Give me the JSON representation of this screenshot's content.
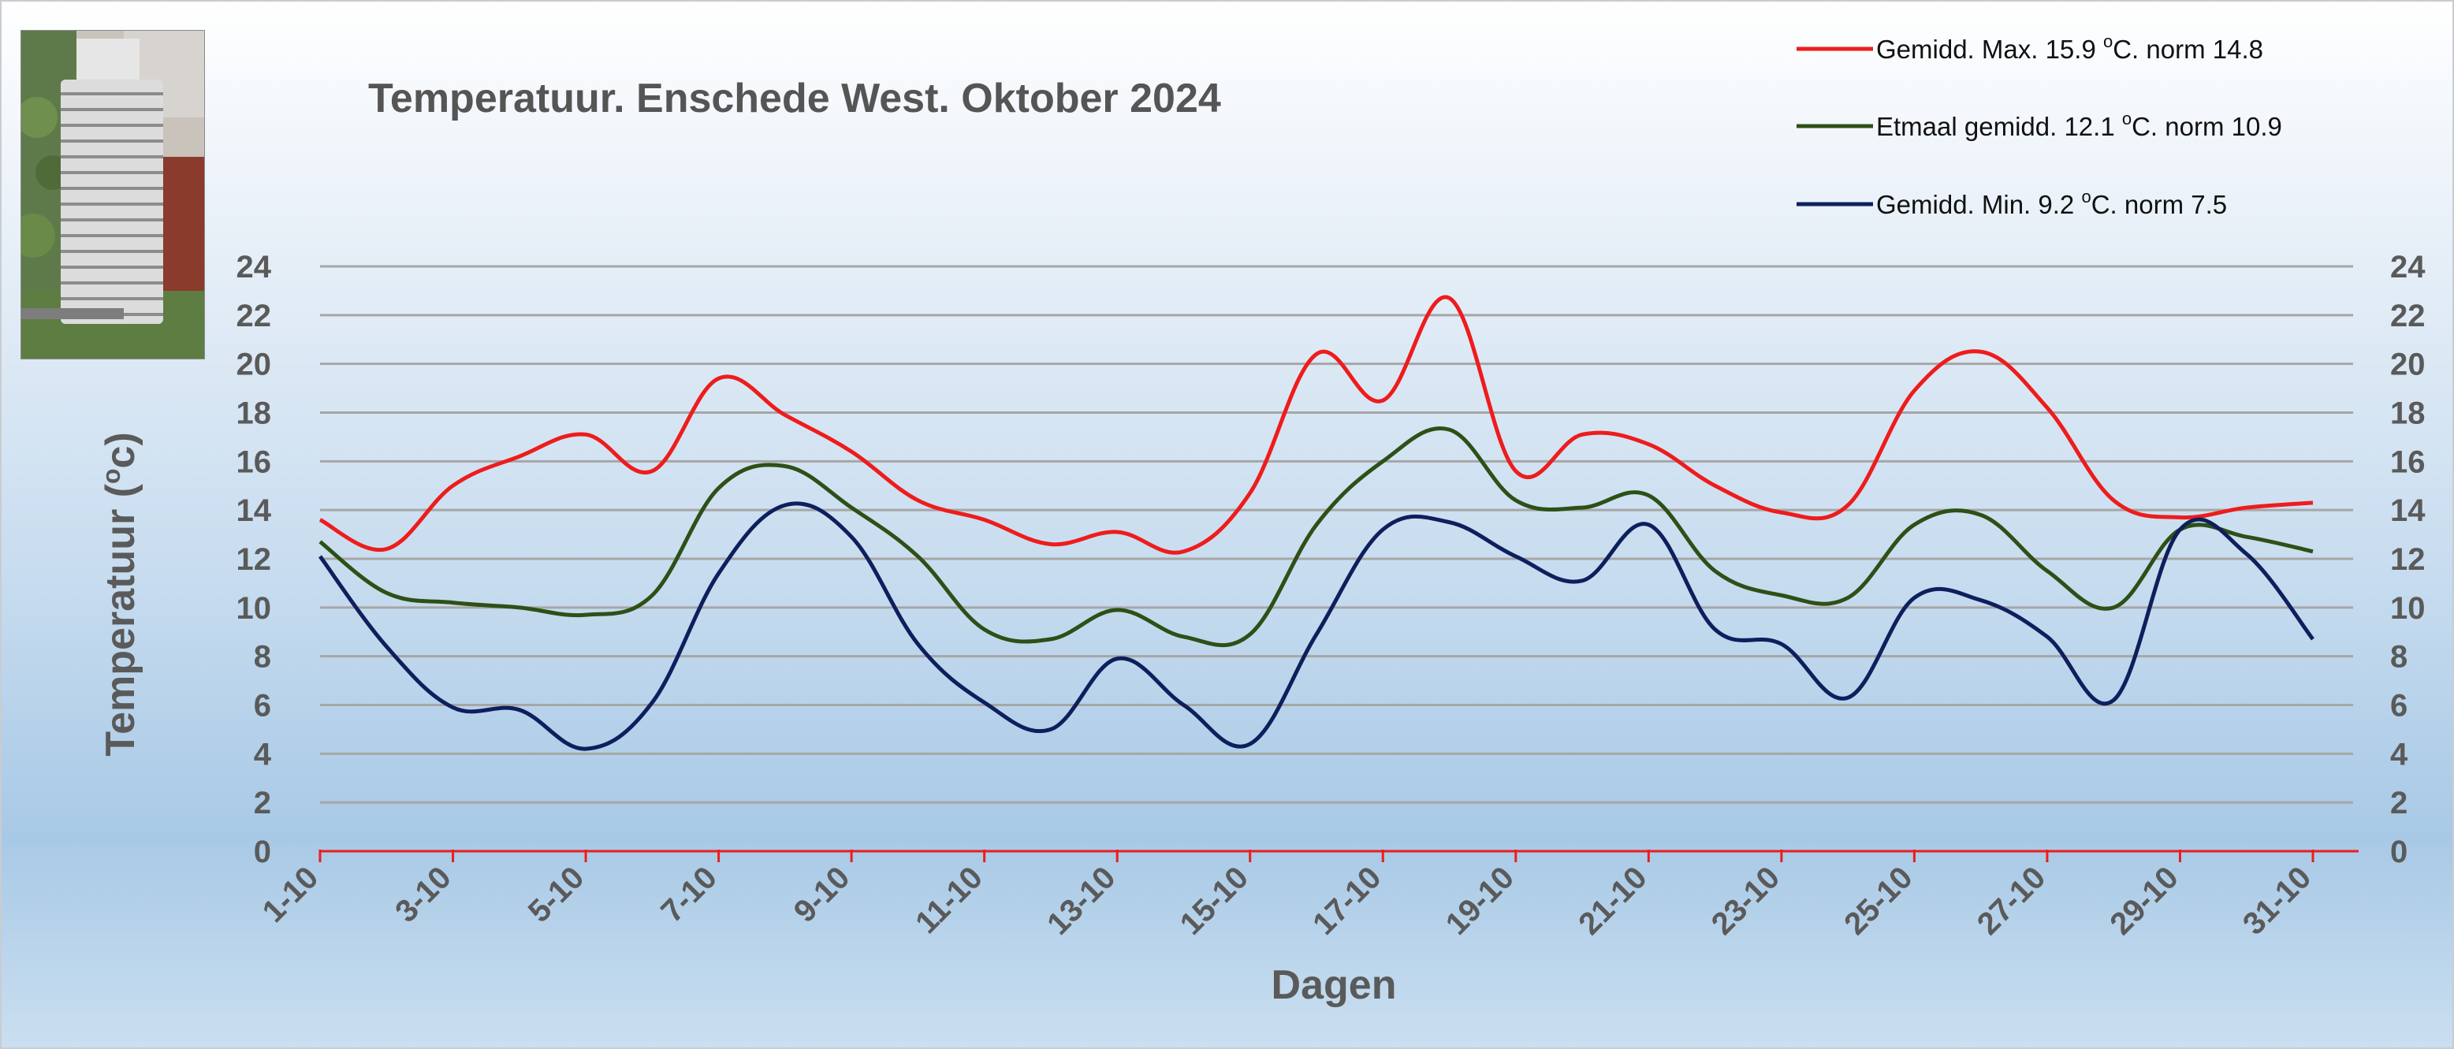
{
  "chart_data": {
    "type": "line",
    "title": "Temperatuur. Enschede West. Oktober 2024",
    "xlabel": "Dagen",
    "ylabel": "Temperatuur (°c)",
    "ylabel_parts": {
      "before": "Temperatuur (",
      "sup": "o",
      "after": "c)"
    },
    "ylim": [
      0,
      24
    ],
    "yticks": [
      0,
      2,
      4,
      6,
      8,
      10,
      12,
      14,
      16,
      18,
      20,
      22,
      24
    ],
    "x": [
      "1-10",
      "2-10",
      "3-10",
      "4-10",
      "5-10",
      "6-10",
      "7-10",
      "8-10",
      "9-10",
      "10-10",
      "11-10",
      "12-10",
      "13-10",
      "14-10",
      "15-10",
      "16-10",
      "17-10",
      "18-10",
      "19-10",
      "20-10",
      "21-10",
      "22-10",
      "23-10",
      "24-10",
      "25-10",
      "26-10",
      "27-10",
      "28-10",
      "29-10",
      "30-10",
      "31-10"
    ],
    "xtick_labels": [
      "1-10",
      "3-10",
      "5-10",
      "7-10",
      "9-10",
      "11-10",
      "13-10",
      "15-10",
      "17-10",
      "19-10",
      "21-10",
      "23-10",
      "25-10",
      "27-10",
      "29-10",
      "31-10"
    ],
    "grid": true,
    "legend_position": "top-right",
    "series": [
      {
        "name": "Gemidd. Max. 15.9  °C. norm 14.8",
        "legend_parts": {
          "before": "Gemidd. Max. 15.9  ",
          "sup": "o",
          "after": "C. norm 14.8"
        },
        "color": "#ee1c1c",
        "values": [
          13.6,
          12.4,
          15.0,
          16.2,
          17.1,
          15.6,
          19.4,
          17.9,
          16.4,
          14.4,
          13.6,
          12.6,
          13.1,
          12.3,
          14.7,
          20.4,
          18.5,
          22.7,
          15.6,
          17.1,
          16.7,
          15.0,
          13.9,
          14.2,
          18.9,
          20.5,
          18.2,
          14.4,
          13.7,
          14.1,
          14.3
        ]
      },
      {
        "name": "Etmaal gemidd. 12.1  °C. norm 10.9",
        "legend_parts": {
          "before": "Etmaal gemidd. 12.1  ",
          "sup": "o",
          "after": "C. norm 10.9"
        },
        "color": "#2d5016",
        "values": [
          12.7,
          10.6,
          10.2,
          10.0,
          9.7,
          10.5,
          14.9,
          15.8,
          14.1,
          12.1,
          9.1,
          8.7,
          9.9,
          8.8,
          8.9,
          13.4,
          16.0,
          17.3,
          14.4,
          14.1,
          14.6,
          11.5,
          10.5,
          10.4,
          13.4,
          13.8,
          11.5,
          10.0,
          13.2,
          12.9,
          12.3
        ]
      },
      {
        "name": "Gemidd. Min. 9.2  °C. norm 7.5",
        "legend_parts": {
          "before": "Gemidd. Min. 9.2  ",
          "sup": "o",
          "after": "C. norm 7.5"
        },
        "color": "#0d1f5c",
        "values": [
          12.1,
          8.4,
          5.9,
          5.8,
          4.2,
          6.1,
          11.4,
          14.2,
          12.9,
          8.5,
          6.1,
          5.0,
          7.9,
          6.0,
          4.4,
          8.9,
          13.2,
          13.5,
          12.1,
          11.1,
          13.4,
          9.1,
          8.5,
          6.3,
          10.4,
          10.3,
          8.8,
          6.2,
          13.2,
          12.2,
          8.7
        ]
      }
    ]
  }
}
